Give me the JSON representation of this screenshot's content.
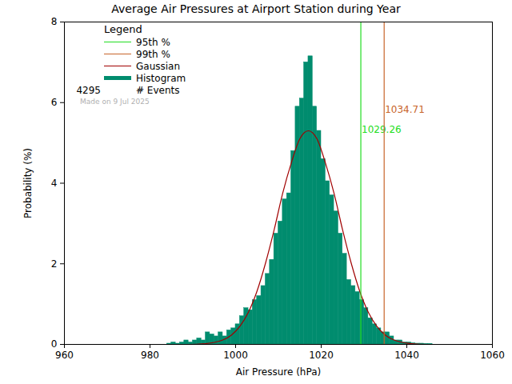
{
  "chart_data": {
    "type": "histogram",
    "title": "Average Air Pressures at Airport Station during Year",
    "x_label": "Air Pressure (hPa)",
    "y_label": "Probability (%)",
    "xlim": [
      960,
      1060
    ],
    "xticks": [
      960,
      980,
      1000,
      1020,
      1040,
      1060
    ],
    "ylim": [
      0,
      8
    ],
    "yticks": [
      0,
      2,
      4,
      6,
      8
    ],
    "legend": "top-left",
    "legend_title": "Legend",
    "event_count": 4295,
    "event_count_label": "# Events",
    "caption": "Made on 9 Jul 2025",
    "reference_lines": [
      {
        "name": "95th %",
        "value": 1029.26,
        "color": "#22dd22"
      },
      {
        "name": "99th %",
        "value": 1034.71,
        "color": "#c8642a"
      }
    ],
    "series": [
      {
        "name": "Gaussian",
        "type": "line",
        "color": "#a00000",
        "x": [
          960,
          985,
          989,
          993,
          995,
          997,
          999,
          1001,
          1003,
          1005,
          1007,
          1009,
          1011,
          1013,
          1015,
          1017,
          1019,
          1021,
          1023,
          1025,
          1027,
          1029,
          1031,
          1033,
          1035,
          1037,
          1039,
          1041,
          1045,
          1060
        ],
        "values": [
          0,
          0,
          0,
          0.02,
          0.05,
          0.11,
          0.23,
          0.45,
          0.8,
          1.32,
          2.02,
          2.84,
          3.75,
          4.5,
          5.1,
          5.3,
          5.1,
          4.5,
          3.75,
          2.84,
          2.02,
          1.32,
          0.8,
          0.45,
          0.23,
          0.11,
          0.05,
          0.02,
          0,
          0
        ]
      },
      {
        "name": "Histogram",
        "type": "bar",
        "color": "#008c6e",
        "bins": [
          984,
          985,
          986,
          987,
          988,
          989,
          990,
          991,
          992,
          993,
          994,
          995,
          996,
          997,
          998,
          999,
          1000,
          1001,
          1002,
          1003,
          1004,
          1005,
          1006,
          1007,
          1008,
          1009,
          1010,
          1011,
          1012,
          1013,
          1014,
          1015,
          1016,
          1017,
          1018,
          1019,
          1020,
          1021,
          1022,
          1023,
          1024,
          1025,
          1026,
          1027,
          1028,
          1029,
          1030,
          1031,
          1032,
          1033,
          1034,
          1035,
          1036,
          1037,
          1038,
          1039,
          1040,
          1041,
          1042,
          1043,
          1044,
          1045,
          1046
        ],
        "values": [
          0.02,
          0.05,
          0.02,
          0.05,
          0.1,
          0.05,
          0.1,
          0.15,
          0.1,
          0.3,
          0.25,
          0.2,
          0.3,
          0.2,
          0.35,
          0.4,
          0.5,
          0.7,
          0.9,
          0.85,
          1.1,
          1.2,
          1.45,
          1.75,
          2.1,
          2.75,
          3.05,
          3.6,
          3.75,
          4.8,
          5.9,
          6.1,
          7.0,
          7.15,
          5.9,
          5.3,
          4.6,
          4.05,
          3.7,
          3.3,
          2.75,
          2.25,
          1.6,
          1.45,
          1.3,
          1.1,
          0.9,
          0.65,
          0.5,
          0.4,
          0.3,
          0.3,
          0.2,
          0.1,
          0.1,
          0.05,
          0.05,
          0.03,
          0.02,
          0.02,
          0.01,
          0.01
        ]
      }
    ]
  }
}
